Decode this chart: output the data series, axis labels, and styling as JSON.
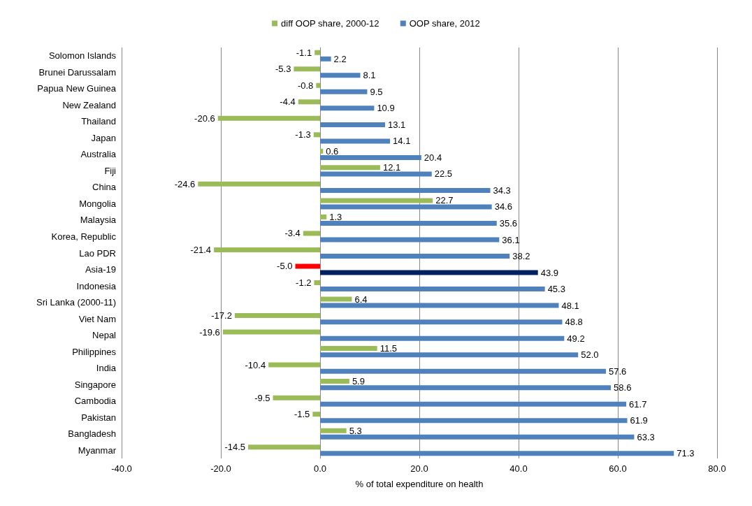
{
  "chart_data": {
    "type": "bar",
    "orientation": "horizontal",
    "xlabel": "% of total expenditure on health",
    "categories": [
      "Solomon Islands",
      "Brunei Darussalam",
      "Papua New Guinea",
      "New Zealand",
      "Thailand",
      "Japan",
      "Australia",
      "Fiji",
      "China",
      "Mongolia",
      "Malaysia",
      "Korea, Republic",
      "Lao PDR",
      "Asia-19",
      "Indonesia",
      "Sri Lanka (2000-11)",
      "Viet Nam",
      "Nepal",
      "Philippines",
      "India",
      "Singapore",
      "Cambodia",
      "Pakistan",
      "Bangladesh",
      "Myanmar"
    ],
    "series": [
      {
        "name": "diff OOP share, 2000-12",
        "color": "#9bbb59",
        "colors": [
          "#9bbb59",
          "#9bbb59",
          "#9bbb59",
          "#9bbb59",
          "#9bbb59",
          "#9bbb59",
          "#9bbb59",
          "#9bbb59",
          "#9bbb59",
          "#9bbb59",
          "#9bbb59",
          "#9bbb59",
          "#9bbb59",
          "#ff0000",
          "#9bbb59",
          "#9bbb59",
          "#9bbb59",
          "#9bbb59",
          "#9bbb59",
          "#9bbb59",
          "#9bbb59",
          "#9bbb59",
          "#9bbb59",
          "#9bbb59",
          "#9bbb59"
        ],
        "values": [
          -1.1,
          -5.3,
          -0.8,
          -4.4,
          -20.6,
          -1.3,
          0.6,
          12.1,
          -24.6,
          22.7,
          1.3,
          -3.4,
          -21.4,
          -5.0,
          -1.2,
          6.4,
          -17.2,
          -19.6,
          11.5,
          -10.4,
          5.9,
          -9.5,
          -1.5,
          5.3,
          -14.5
        ],
        "value_labels": [
          "-1.1",
          "-5.3",
          "-0.8",
          "-4.4",
          "-20.6",
          "-1.3",
          "0.6",
          "12.1",
          "-24.6",
          "22.7",
          "1.3",
          "-3.4",
          "-21.4",
          "-5.0",
          "-1.2",
          "6.4",
          "-17.2",
          "-19.6",
          "11.5",
          "-10.4",
          "5.9",
          "-9.5",
          "-1.5",
          "5.3",
          "-14.5"
        ]
      },
      {
        "name": "OOP share, 2012",
        "color": "#4f81bd",
        "colors": [
          "#4f81bd",
          "#4f81bd",
          "#4f81bd",
          "#4f81bd",
          "#4f81bd",
          "#4f81bd",
          "#4f81bd",
          "#4f81bd",
          "#4f81bd",
          "#4f81bd",
          "#4f81bd",
          "#4f81bd",
          "#4f81bd",
          "#002060",
          "#4f81bd",
          "#4f81bd",
          "#4f81bd",
          "#4f81bd",
          "#4f81bd",
          "#4f81bd",
          "#4f81bd",
          "#4f81bd",
          "#4f81bd",
          "#4f81bd",
          "#4f81bd"
        ],
        "values": [
          2.2,
          8.1,
          9.5,
          10.9,
          13.1,
          14.1,
          20.4,
          22.5,
          34.3,
          34.6,
          35.6,
          36.1,
          38.2,
          43.9,
          45.3,
          48.1,
          48.8,
          49.2,
          52.0,
          57.6,
          58.6,
          61.7,
          61.9,
          63.3,
          71.3
        ],
        "value_labels": [
          "2.2",
          "8.1",
          "9.5",
          "10.9",
          "13.1",
          "14.1",
          "20.4",
          "22.5",
          "34.3",
          "34.6",
          "35.6",
          "36.1",
          "38.2",
          "43.9",
          "45.3",
          "48.1",
          "48.8",
          "49.2",
          "52.0",
          "57.6",
          "58.6",
          "61.7",
          "61.9",
          "63.3",
          "71.3"
        ]
      }
    ],
    "xlim": [
      -40,
      80
    ],
    "xticks": [
      {
        "value": -40,
        "label": "-40.0"
      },
      {
        "value": -20,
        "label": "-20.0"
      },
      {
        "value": 0,
        "label": "0.0"
      },
      {
        "value": 20,
        "label": "20.0"
      },
      {
        "value": 40,
        "label": "40.0"
      },
      {
        "value": 60,
        "label": "60.0"
      },
      {
        "value": 80,
        "label": "80.0"
      }
    ],
    "grid": "x",
    "legend": "top"
  }
}
